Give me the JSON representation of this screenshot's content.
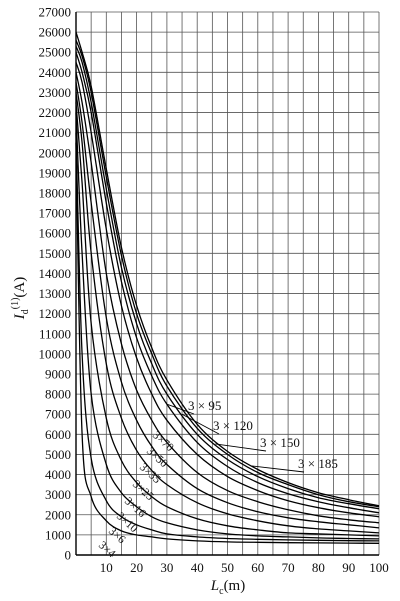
{
  "chart_data": {
    "type": "line",
    "ylabel_main": "I",
    "ylabel_sub": "d",
    "ylabel_sup": "(1)",
    "ylabel_unit": "(A)",
    "xlabel_main": "L",
    "xlabel_sub": "c",
    "xlabel_unit": "(m)",
    "xlim": [
      0,
      100
    ],
    "ylim": [
      0,
      27000
    ],
    "x_ticks": [
      10,
      20,
      30,
      40,
      50,
      60,
      70,
      80,
      90,
      100
    ],
    "y_ticks": [
      0,
      1000,
      2000,
      3000,
      4000,
      5000,
      6000,
      7000,
      8000,
      9000,
      10000,
      11000,
      12000,
      13000,
      14000,
      15000,
      16000,
      17000,
      18000,
      19000,
      20000,
      21000,
      22000,
      23000,
      24000,
      25000,
      26000,
      27000
    ],
    "grid": true,
    "x": [
      0,
      2,
      5,
      10,
      15,
      20,
      25,
      30,
      40,
      50,
      60,
      70,
      80,
      90,
      100
    ],
    "series": [
      {
        "name": "3×4",
        "values": [
          20500,
          6000,
          2900,
          1700,
          1200,
          1000,
          900,
          800,
          700,
          650,
          630,
          610,
          600,
          590,
          580
        ]
      },
      {
        "name": "3×6",
        "values": [
          21000,
          10000,
          4800,
          2700,
          1900,
          1500,
          1250,
          1050,
          900,
          820,
          780,
          750,
          730,
          710,
          700
        ]
      },
      {
        "name": "3×10",
        "values": [
          22000,
          15000,
          8000,
          4500,
          3100,
          2400,
          1900,
          1600,
          1250,
          1050,
          950,
          900,
          850,
          820,
          800
        ]
      },
      {
        "name": "3×16",
        "values": [
          22500,
          18500,
          11500,
          6800,
          4700,
          3600,
          2900,
          2400,
          1800,
          1450,
          1250,
          1100,
          1050,
          1000,
          950
        ]
      },
      {
        "name": "3×25",
        "values": [
          23000,
          20500,
          15000,
          9500,
          6800,
          5200,
          4200,
          3500,
          2600,
          2050,
          1700,
          1450,
          1300,
          1200,
          1100
        ]
      },
      {
        "name": "3×35",
        "values": [
          23500,
          21500,
          17500,
          11800,
          8600,
          6700,
          5400,
          4500,
          3300,
          2600,
          2150,
          1850,
          1650,
          1500,
          1350
        ]
      },
      {
        "name": "3×50",
        "values": [
          24000,
          22500,
          19500,
          14000,
          10500,
          8200,
          6700,
          5600,
          4100,
          3200,
          2650,
          2250,
          1950,
          1750,
          1600
        ]
      },
      {
        "name": "3×70",
        "values": [
          24500,
          23500,
          21000,
          16200,
          12400,
          9800,
          8000,
          6700,
          5000,
          3900,
          3200,
          2700,
          2350,
          2100,
          1900
        ]
      },
      {
        "name": "3×95",
        "values": [
          25000,
          24000,
          22000,
          17500,
          13600,
          10800,
          8900,
          7500,
          5600,
          4400,
          3600,
          3050,
          2650,
          2350,
          2100
        ]
      },
      {
        "name": "3×120",
        "values": [
          25300,
          24500,
          22500,
          18200,
          14300,
          11500,
          9500,
          8000,
          6000,
          4750,
          3900,
          3300,
          2850,
          2550,
          2300
        ]
      },
      {
        "name": "3×150",
        "values": [
          25600,
          24800,
          23000,
          18800,
          14900,
          12000,
          10000,
          8400,
          6300,
          5000,
          4100,
          3500,
          3000,
          2650,
          2400
        ]
      },
      {
        "name": "3×185",
        "values": [
          26000,
          25000,
          23300,
          19200,
          15300,
          12400,
          10300,
          8700,
          6500,
          5150,
          4250,
          3600,
          3100,
          2750,
          2450
        ]
      }
    ],
    "labels_horizontal": [
      {
        "series": "3×95",
        "text": "3 × 95"
      },
      {
        "series": "3×120",
        "text": "3 × 120"
      },
      {
        "series": "3×150",
        "text": "3 × 150"
      },
      {
        "series": "3×185",
        "text": "3 × 185"
      }
    ],
    "labels_rotated": [
      {
        "series": "3×70",
        "text": "3×70"
      },
      {
        "series": "3×50",
        "text": "3×50"
      },
      {
        "series": "3×35",
        "text": "3×35"
      },
      {
        "series": "3×25",
        "text": "3×25"
      },
      {
        "series": "3×16",
        "text": "3×16"
      },
      {
        "series": "3×10",
        "text": "3×10"
      },
      {
        "series": "3×6",
        "text": "3×6"
      },
      {
        "series": "3×4",
        "text": "3×4"
      }
    ]
  }
}
